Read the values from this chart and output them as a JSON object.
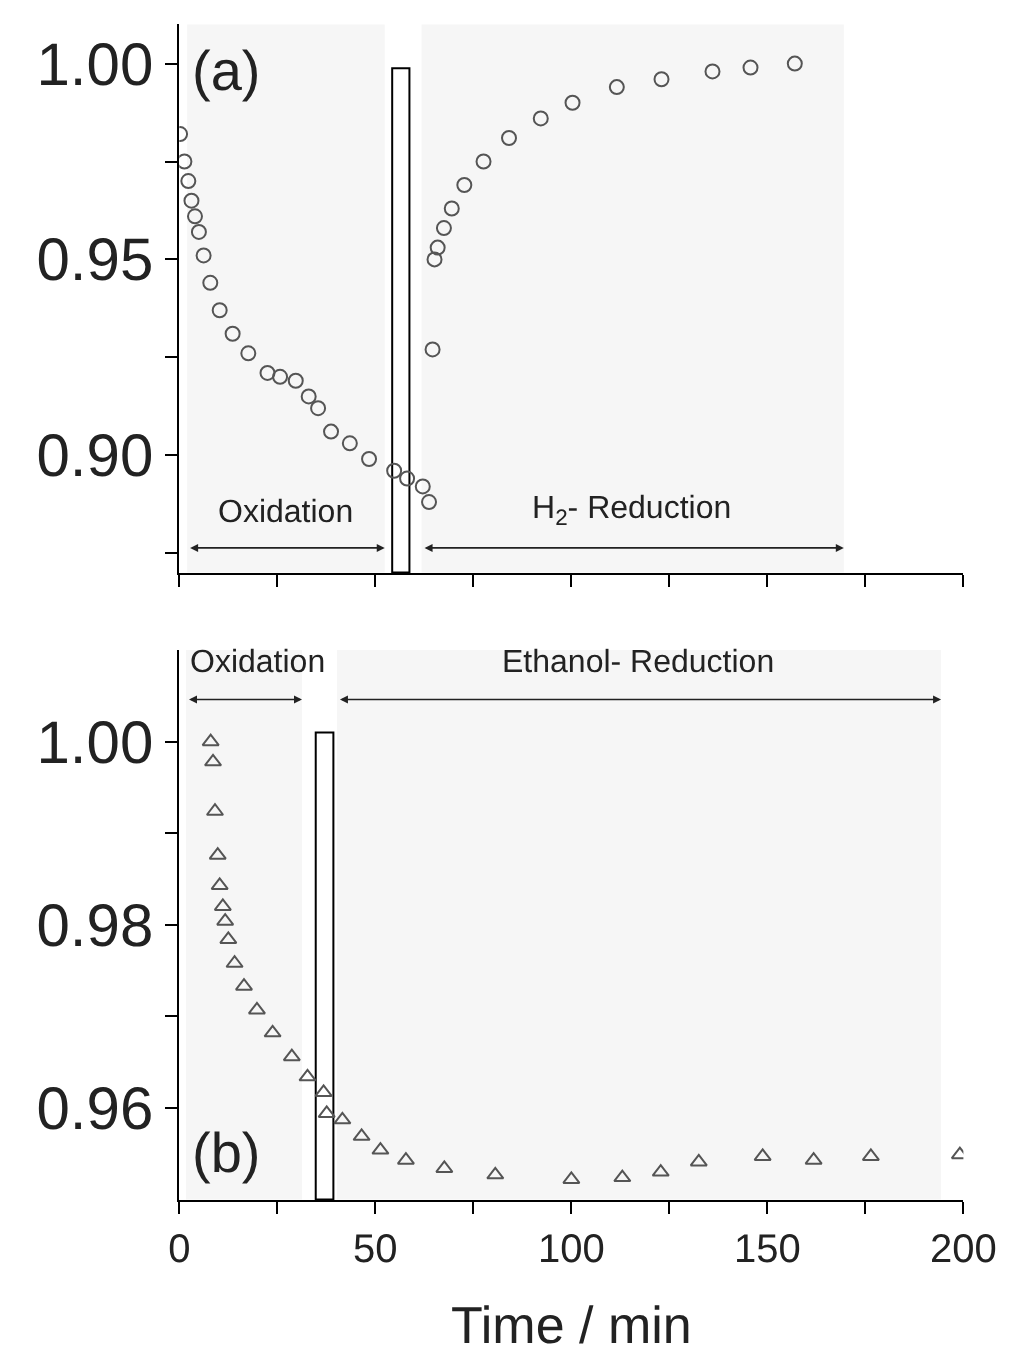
{
  "chart_data": [
    {
      "type": "scatter",
      "marker": "circle",
      "tick_labels": "y",
      "annotations": [
        "(a)"
      ],
      "xlim": [
        0,
        200
      ],
      "xticks": [
        {
          "value": 0,
          "label": null
        },
        {
          "value": 25,
          "label": null
        },
        {
          "value": 50,
          "label": null
        },
        {
          "value": 75,
          "label": null
        },
        {
          "value": 100,
          "label": null
        },
        {
          "value": 125,
          "label": null
        },
        {
          "value": 150,
          "label": null
        },
        {
          "value": 175,
          "label": null
        },
        {
          "value": 200,
          "label": null
        }
      ],
      "ylim": [
        0.87,
        1.01
      ],
      "yticks": [
        {
          "value": 0.875,
          "label": null
        },
        {
          "value": 0.9,
          "label": "0.90"
        },
        {
          "value": 0.925,
          "label": null
        },
        {
          "value": 0.95,
          "label": "0.95"
        },
        {
          "value": 0.975,
          "label": null
        },
        {
          "value": 1.0,
          "label": "1.00"
        }
      ],
      "bands": [
        {
          "axis": "x",
          "from": 54.3,
          "to": 58.7,
          "color": "#ffffff"
        },
        {
          "axis": "x",
          "from": 2,
          "to": 52.4,
          "label": "Oxidation",
          "color": "#f6f6f6"
        },
        {
          "axis": "x",
          "from": 61.8,
          "to": 169.5,
          "label": "H$_{2}$- Reduction",
          "color": "#f6f6f6"
        }
      ],
      "series": [
        {
          "color": "#555555",
          "x": [
            0.2,
            1.3,
            2.3,
            3.1,
            4.0,
            5.0,
            6.2,
            7.9,
            10.3,
            13.6,
            17.6,
            22.5,
            25.7,
            29.7,
            33.0,
            35.4,
            38.7,
            43.5,
            48.4,
            54.8,
            58.1,
            62.1,
            63.7,
            64.6,
            65.1,
            65.9,
            67.5,
            69.5,
            72.7,
            77.6,
            84.1,
            92.2,
            100.3,
            111.6,
            123,
            136,
            145.7,
            157
          ],
          "values": [
            0.982,
            0.975,
            0.97,
            0.965,
            0.961,
            0.957,
            0.951,
            0.944,
            0.937,
            0.931,
            0.926,
            0.921,
            0.92,
            0.919,
            0.915,
            0.912,
            0.906,
            0.903,
            0.899,
            0.896,
            0.894,
            0.892,
            0.888,
            0.927,
            0.95,
            0.953,
            0.958,
            0.963,
            0.969,
            0.975,
            0.981,
            0.986,
            0.99,
            0.994,
            0.996,
            0.998,
            0.999,
            1.0
          ]
        }
      ]
    },
    {
      "type": "scatter",
      "marker": "triangle",
      "xlabel": "Time / min",
      "annotations": [
        "(b)"
      ],
      "xlim": [
        0,
        200
      ],
      "xticks": [
        0,
        {
          "value": 25,
          "label": null
        },
        50,
        {
          "value": 75,
          "label": null
        },
        100,
        {
          "value": 125,
          "label": null
        },
        150,
        {
          "value": 175,
          "label": null
        },
        200
      ],
      "ylim": [
        0.95,
        1.01
      ],
      "yticks": [
        {
          "value": 0.96,
          "label": "0.96"
        },
        {
          "value": 0.97,
          "label": null
        },
        {
          "value": 0.98,
          "label": "0.98"
        },
        {
          "value": 0.99,
          "label": null
        },
        {
          "value": 1.0,
          "label": "1.00"
        }
      ],
      "bands": [
        {
          "axis": "x",
          "from": 34.8,
          "to": 39.3,
          "color": "#ffffff"
        },
        {
          "axis": "x",
          "from": 1.7,
          "to": 31.3,
          "label": "Oxidation",
          "color": "#f6f6f6"
        },
        {
          "axis": "x",
          "from": 40.2,
          "to": 194.3,
          "label": "Ethanol- Reduction",
          "color": "#f6f6f6"
        }
      ],
      "series": [
        {
          "color": "#555555",
          "x": [
            8.0,
            8.6,
            9.1,
            9.8,
            10.3,
            11.1,
            11.7,
            12.5,
            14.1,
            16.5,
            19.8,
            23.8,
            28.7,
            32.7,
            36.8,
            37.6,
            41.6,
            46.5,
            51.3,
            57.8,
            67.6,
            80.6,
            100,
            113,
            122.8,
            132.5,
            148.8,
            161.8,
            176.4,
            199.1
          ],
          "values": [
            1.0,
            0.9978,
            0.9924,
            0.9876,
            0.9843,
            0.982,
            0.9804,
            0.9784,
            0.9758,
            0.9733,
            0.9707,
            0.9682,
            0.9656,
            0.9634,
            0.9617,
            0.9594,
            0.9587,
            0.9569,
            0.9554,
            0.9543,
            0.9534,
            0.9527,
            0.9522,
            0.9524,
            0.953,
            0.9541,
            0.9547,
            0.9543,
            0.9547,
            0.9549
          ]
        }
      ]
    }
  ]
}
